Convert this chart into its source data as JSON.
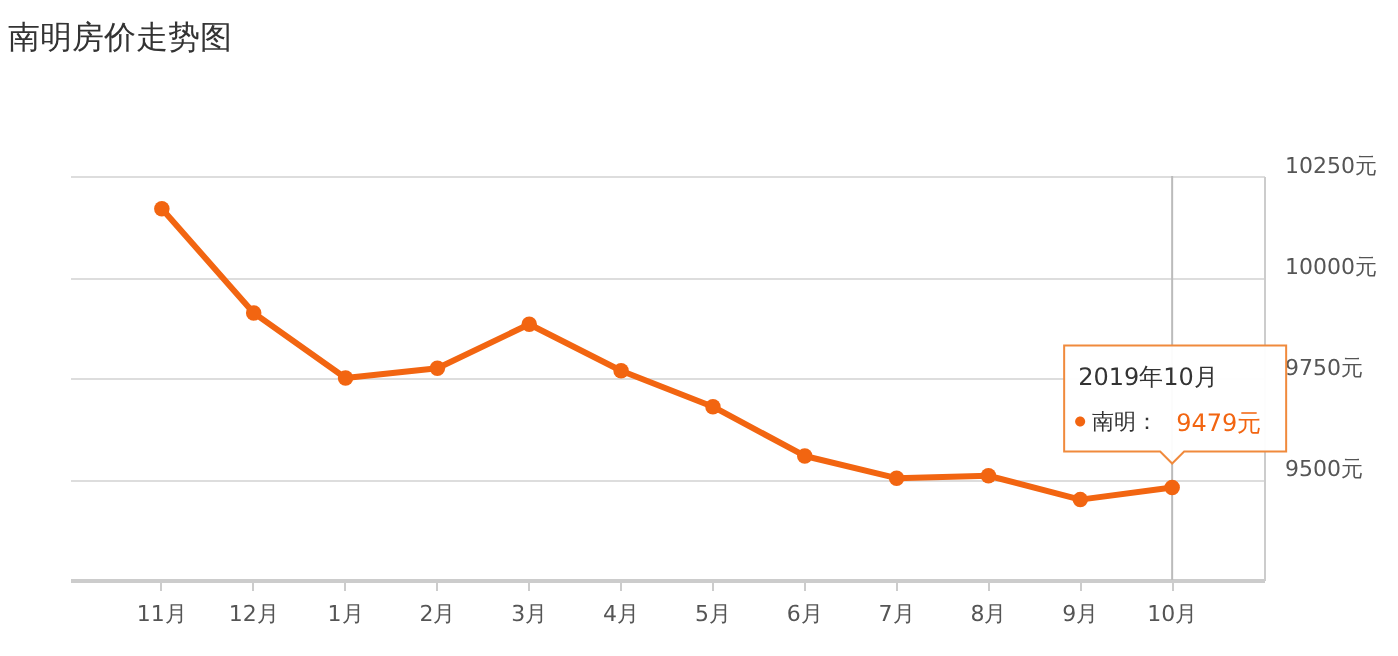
{
  "chart_data": {
    "type": "line",
    "title": "南明房价走势图",
    "categories": [
      "11月",
      "12月",
      "1月",
      "2月",
      "3月",
      "4月",
      "5月",
      "6月",
      "7月",
      "8月",
      "9月",
      "10月"
    ],
    "series": [
      {
        "name": "南明：",
        "color": "#f26511",
        "values": [
          10169,
          9911,
          9750,
          9774,
          9883,
          9768,
          9679,
          9557,
          9502,
          9508,
          9449,
          9479
        ],
        "value_labels": [
          null,
          null,
          null,
          null,
          null,
          null,
          null,
          null,
          null,
          null,
          null,
          "9479元"
        ]
      }
    ],
    "ylim": [
      9250,
      10250
    ],
    "yticks": [
      {
        "value": 9500,
        "label": "9500元"
      },
      {
        "value": 9750,
        "label": "9750元"
      },
      {
        "value": 10000,
        "label": "10000元"
      },
      {
        "value": 10250,
        "label": "10250元"
      }
    ],
    "annotations": [
      "2019年10月"
    ],
    "ref_lines": [
      {
        "axis": "x",
        "value": "10月",
        "color": "#bbbbbb"
      }
    ],
    "grid": "y",
    "marker": "circle",
    "line_style": "solid",
    "legend": "right"
  }
}
